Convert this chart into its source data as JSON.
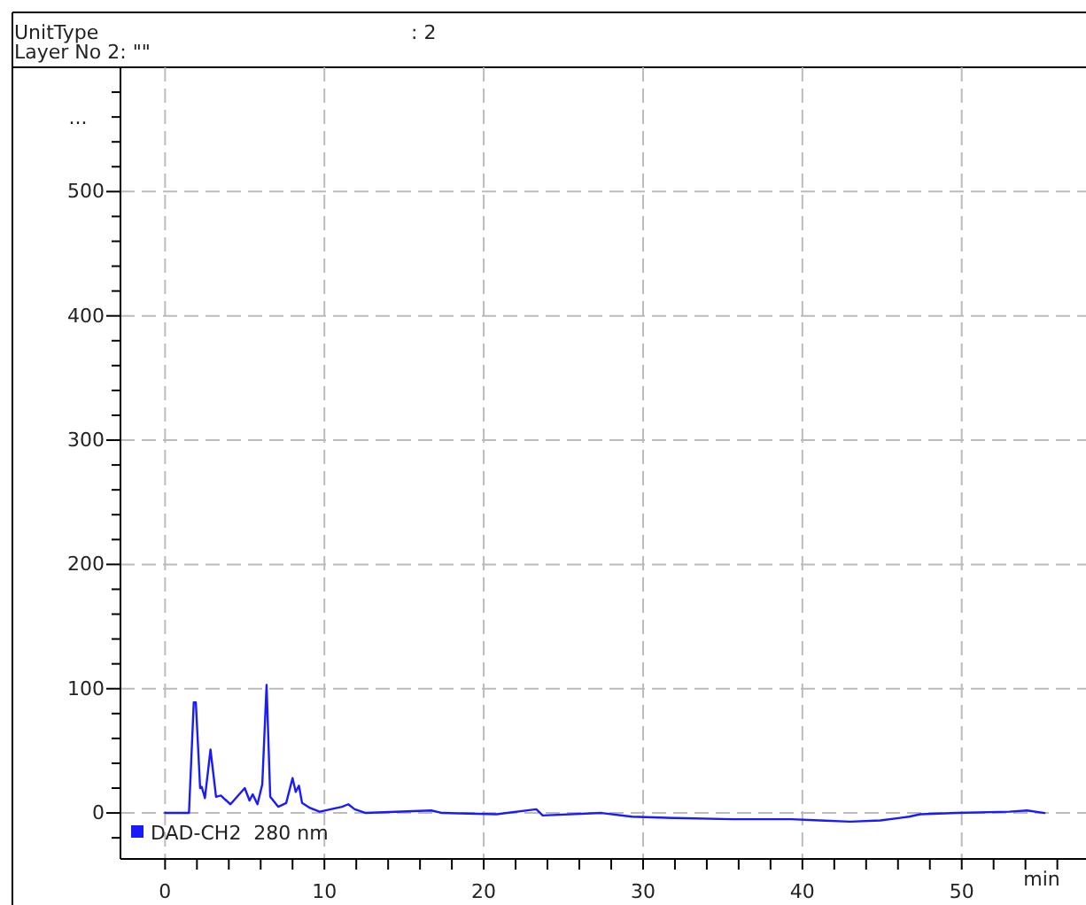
{
  "chart_data": {
    "type": "line",
    "annotations": [
      "UnitType",
      ": 2",
      "Layer No 2: \"\"",
      "..."
    ],
    "xlabel": "min",
    "legend": "bottom left",
    "grid": true,
    "line_style": "solid",
    "marker": "none",
    "xlim": [
      -2.8,
      57.8
    ],
    "ylim": [
      -37,
      600
    ],
    "xticks": [
      0,
      {
        "value": 2,
        "label": null
      },
      {
        "value": 4,
        "label": null
      },
      {
        "value": 6,
        "label": null
      },
      {
        "value": 8,
        "label": null
      },
      10,
      {
        "value": 12,
        "label": null
      },
      {
        "value": 14,
        "label": null
      },
      {
        "value": 16,
        "label": null
      },
      {
        "value": 18,
        "label": null
      },
      20,
      {
        "value": 22,
        "label": null
      },
      {
        "value": 24,
        "label": null
      },
      {
        "value": 26,
        "label": null
      },
      {
        "value": 28,
        "label": null
      },
      30,
      {
        "value": 32,
        "label": null
      },
      {
        "value": 34,
        "label": null
      },
      {
        "value": 36,
        "label": null
      },
      {
        "value": 38,
        "label": null
      },
      40,
      {
        "value": 42,
        "label": null
      },
      {
        "value": 44,
        "label": null
      },
      {
        "value": 46,
        "label": null
      },
      {
        "value": 48,
        "label": null
      },
      50,
      {
        "value": 52,
        "label": null
      },
      {
        "value": 54,
        "label": null
      },
      {
        "value": 56,
        "label": null
      }
    ],
    "yticks": [
      {
        "value": -20,
        "label": null
      },
      0,
      {
        "value": 20,
        "label": null
      },
      {
        "value": 40,
        "label": null
      },
      {
        "value": 60,
        "label": null
      },
      {
        "value": 80,
        "label": null
      },
      100,
      {
        "value": 120,
        "label": null
      },
      {
        "value": 140,
        "label": null
      },
      {
        "value": 160,
        "label": null
      },
      {
        "value": 180,
        "label": null
      },
      200,
      {
        "value": 220,
        "label": null
      },
      {
        "value": 240,
        "label": null
      },
      {
        "value": 260,
        "label": null
      },
      {
        "value": 280,
        "label": null
      },
      300,
      {
        "value": 320,
        "label": null
      },
      {
        "value": 340,
        "label": null
      },
      {
        "value": 360,
        "label": null
      },
      {
        "value": 380,
        "label": null
      },
      400,
      {
        "value": 420,
        "label": null
      },
      {
        "value": 440,
        "label": null
      },
      {
        "value": 460,
        "label": null
      },
      {
        "value": 480,
        "label": null
      },
      500,
      {
        "value": 520,
        "label": null
      },
      {
        "value": 540,
        "label": null
      },
      {
        "value": 560,
        "label": null
      },
      {
        "value": 580,
        "label": null
      }
    ],
    "series": [
      {
        "name": "DAD-CH2  280 nm",
        "color": "#1a1aff",
        "x": [
          0,
          1.5,
          1.8,
          1.93,
          2.2,
          2.3,
          2.5,
          2.85,
          3.2,
          3.5,
          4.1,
          5.0,
          5.3,
          5.5,
          5.8,
          6.1,
          6.37,
          6.6,
          7.1,
          7.6,
          8.0,
          8.2,
          8.4,
          8.6,
          9.1,
          9.7,
          10.4,
          11.1,
          11.5,
          11.9,
          12.6,
          16.7,
          17.4,
          20.8,
          23.3,
          23.7,
          27.4,
          29.3,
          31.9,
          35.6,
          39.3,
          41.1,
          43.0,
          44.9,
          46.7,
          47.4,
          49.7,
          53.0,
          54.1,
          55.2
        ],
        "values": [
          0,
          0,
          89,
          89,
          20,
          21,
          12,
          51,
          13,
          14,
          7,
          20,
          10,
          15,
          7,
          23,
          103,
          13,
          5,
          8,
          28,
          17,
          22,
          8,
          4,
          1,
          3,
          5,
          7,
          3,
          0,
          2,
          0,
          -1,
          3,
          -2,
          0,
          -3,
          -4,
          -5,
          -5,
          -6,
          -7,
          -6,
          -3,
          -1,
          0,
          1,
          2,
          0
        ]
      }
    ]
  }
}
